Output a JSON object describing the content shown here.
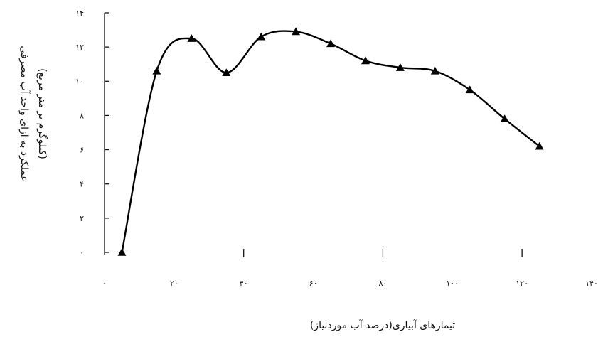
{
  "chart_data": {
    "type": "line",
    "xlabel": "تیمارهای آبیاری(درصد آب موردنیاز)",
    "ylabel": "عملکرد به ازای واحد آب مصرفی",
    "ylabel2": "(کیلوگرم بر متر مربع)",
    "xlim": [
      0,
      140
    ],
    "ylim": [
      0,
      14
    ],
    "x_ticks": [
      0,
      20,
      40,
      60,
      80,
      100,
      120,
      140
    ],
    "x_tick_labels": [
      "۰",
      "۲۰",
      "۴۰",
      "۶۰",
      "۸۰",
      "۱۰۰",
      "۱۲۰",
      "۱۴۰"
    ],
    "y_ticks": [
      0,
      2,
      4,
      6,
      8,
      10,
      12,
      14
    ],
    "y_tick_labels": [
      "۰",
      "۲",
      "۴",
      "۶",
      "۸",
      "۱۰",
      "۱۲",
      "۱۴"
    ],
    "grid": false,
    "series": [
      {
        "marker": "triangle",
        "color": "#000000",
        "points": [
          [
            5,
            0
          ],
          [
            15,
            10.6
          ],
          [
            25,
            12.5
          ],
          [
            35,
            10.5
          ],
          [
            45,
            12.6
          ],
          [
            55,
            12.9
          ],
          [
            65,
            12.2
          ],
          [
            75,
            11.2
          ],
          [
            85,
            10.8
          ],
          [
            95,
            10.6
          ],
          [
            105,
            9.5
          ],
          [
            115,
            7.8
          ],
          [
            125,
            6.2
          ]
        ]
      }
    ]
  }
}
